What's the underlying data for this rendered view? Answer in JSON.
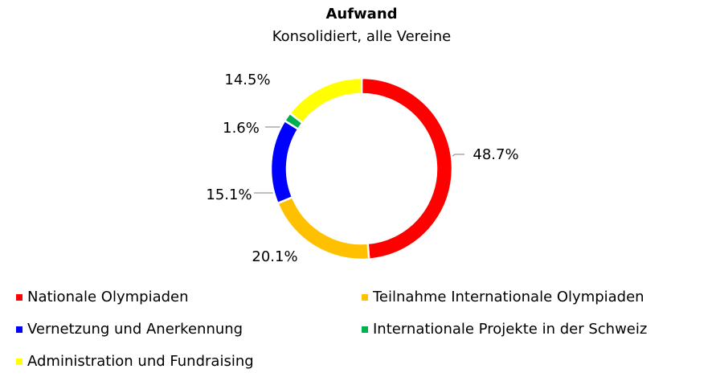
{
  "chart_data": {
    "type": "donut",
    "title": "Aufwand",
    "subtitle": "Konsolidiert, alle Vereine",
    "categories": [
      "Nationale Olympiaden",
      "Teilnahme Internationale Olympiaden",
      "Vernetzung und Anerkennung",
      "Internationale Projekte in der Schweiz",
      "Administration und Fundraising"
    ],
    "values": [
      48.7,
      20.1,
      15.1,
      1.6,
      14.5
    ],
    "value_labels": [
      "48.7%",
      "20.1%",
      "15.1%",
      "1.6%",
      "14.5%"
    ],
    "colors": [
      "#ff0000",
      "#ffc000",
      "#0000ff",
      "#00b050",
      "#ffff00"
    ]
  }
}
